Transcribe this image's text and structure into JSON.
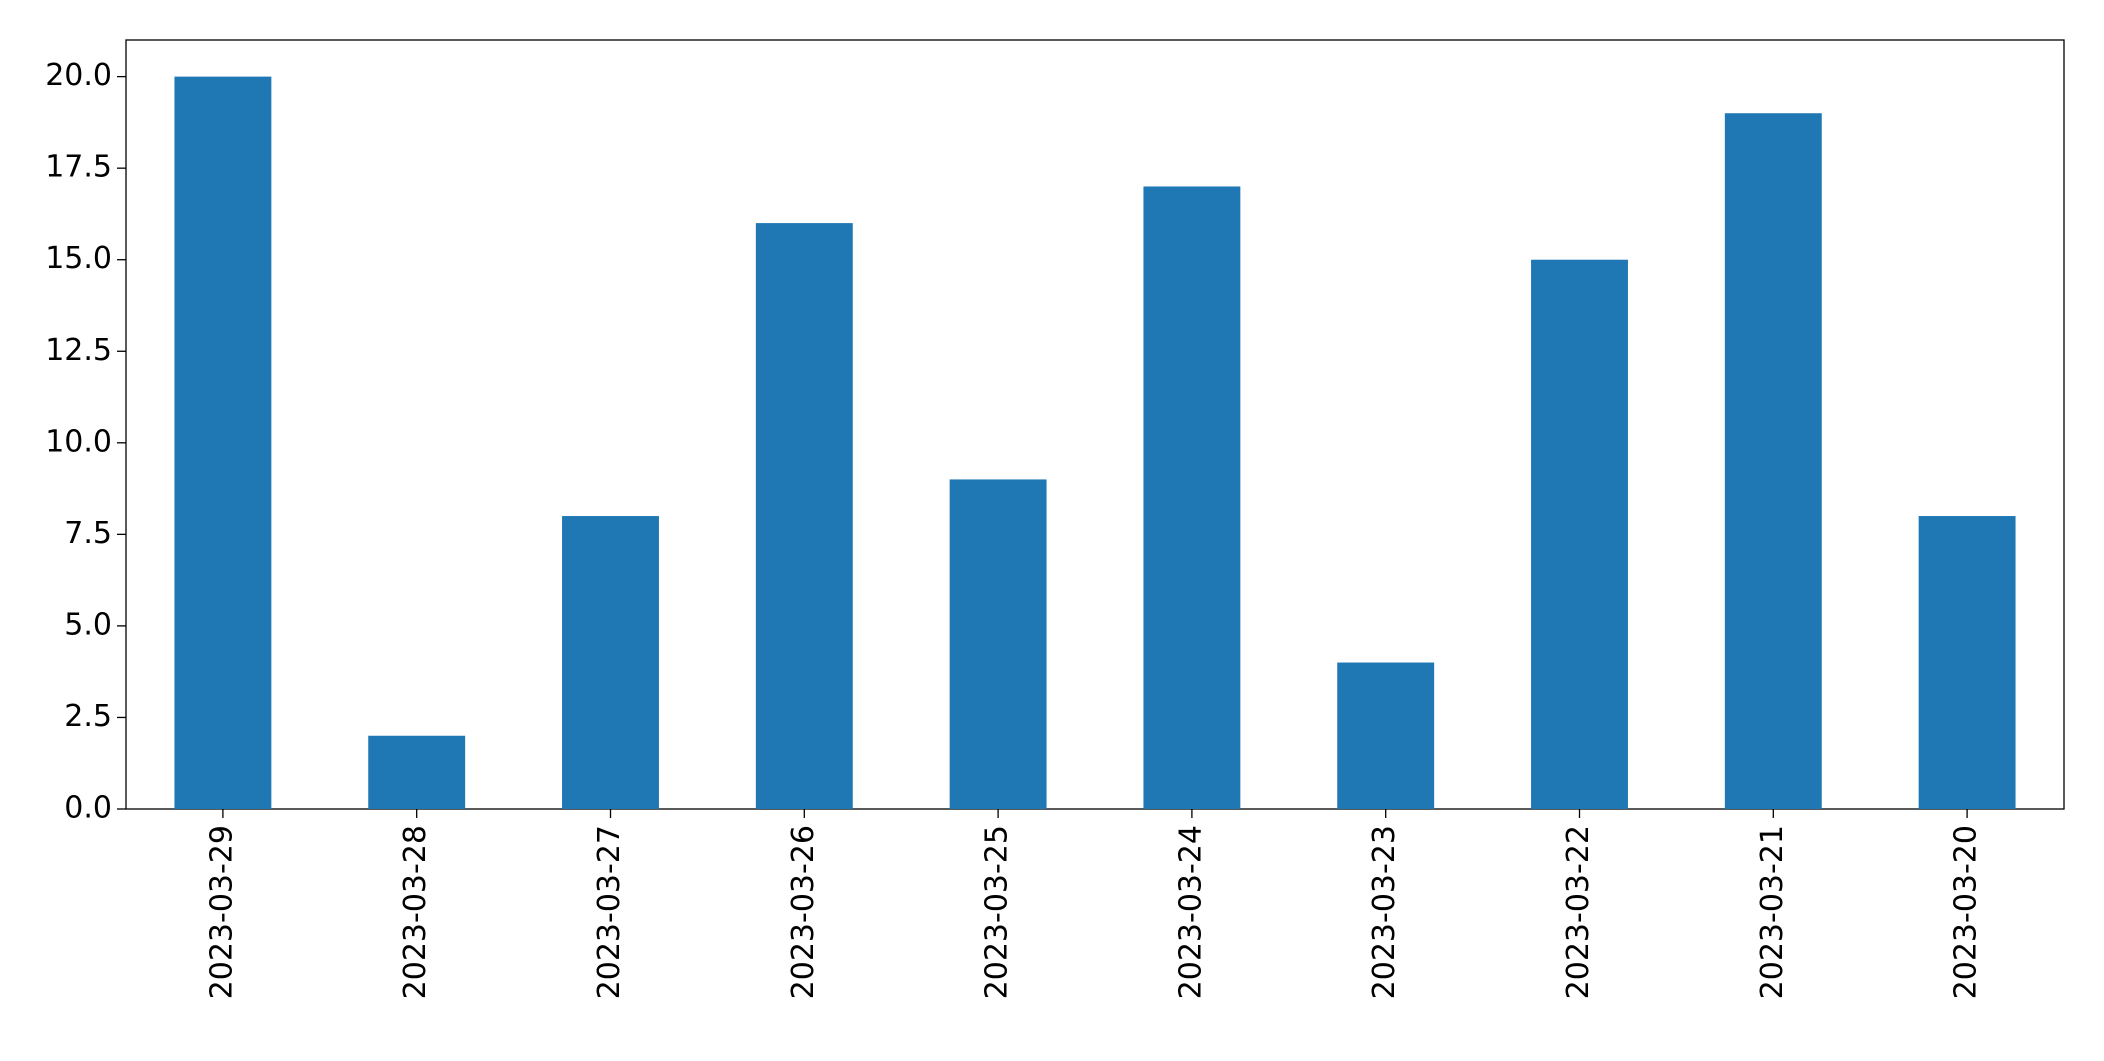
{
  "chart_data": {
    "type": "bar",
    "categories": [
      "2023-03-29",
      "2023-03-28",
      "2023-03-27",
      "2023-03-26",
      "2023-03-25",
      "2023-03-24",
      "2023-03-23",
      "2023-03-22",
      "2023-03-21",
      "2023-03-20"
    ],
    "values": [
      20,
      2,
      8,
      16,
      9,
      17,
      4,
      15,
      19,
      8
    ],
    "color": "#1f77b4",
    "ylim": [
      0,
      21
    ],
    "yticks": [
      {
        "value": 0,
        "label": "0.0"
      },
      2.5,
      {
        "value": 5,
        "label": "5.0"
      },
      7.5,
      {
        "value": 10,
        "label": "10.0"
      },
      12.5,
      {
        "value": 15,
        "label": "15.0"
      },
      17.5,
      {
        "value": 20,
        "label": "20.0"
      }
    ],
    "grid": false
  }
}
